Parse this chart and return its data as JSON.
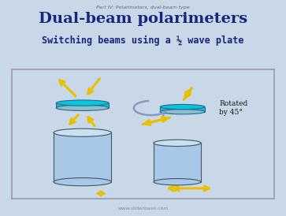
{
  "title": "Dual-beam polarimeters",
  "subtitle": "Switching beams using a ½ wave plate",
  "supertitle": "Part IV: Polarimeters, dual-beam type",
  "watermark": "www.sliderbase.com",
  "bg_color": "#c8d8e8",
  "box_bg": "#c8d8e8",
  "title_color": "#1a237e",
  "subtitle_color": "#1a237e",
  "arrow_color": "#e8c000",
  "cylinder_fill": "#a8c8e8",
  "cylinder_top": "#c8e0f0",
  "plate_color": "#00c8e0",
  "plate_edge": "#336688",
  "rotation_arrow_color": "#8899bb",
  "cyl_edge": "#445566"
}
